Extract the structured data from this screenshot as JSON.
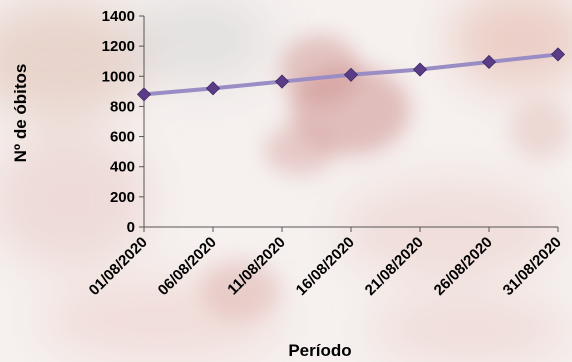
{
  "chart_data": {
    "type": "line",
    "title": "",
    "xlabel": "Período",
    "ylabel": "Nº de óbitos",
    "categories": [
      "01/08/2020",
      "06/08/2020",
      "11/08/2020",
      "16/08/2020",
      "21/08/2020",
      "26/08/2020",
      "31/08/2020"
    ],
    "series": [
      {
        "values": [
          880,
          920,
          965,
          1010,
          1045,
          1095,
          1145
        ]
      }
    ],
    "ylim": [
      0,
      1400
    ],
    "yticks": [
      "0",
      "200",
      "400",
      "600",
      "800",
      "1000",
      "1200",
      "1400"
    ],
    "grid": false,
    "legend": "none",
    "line_color": "#9a8cc4",
    "marker_color": "#5a3d86",
    "marker_shape": "diamond"
  }
}
